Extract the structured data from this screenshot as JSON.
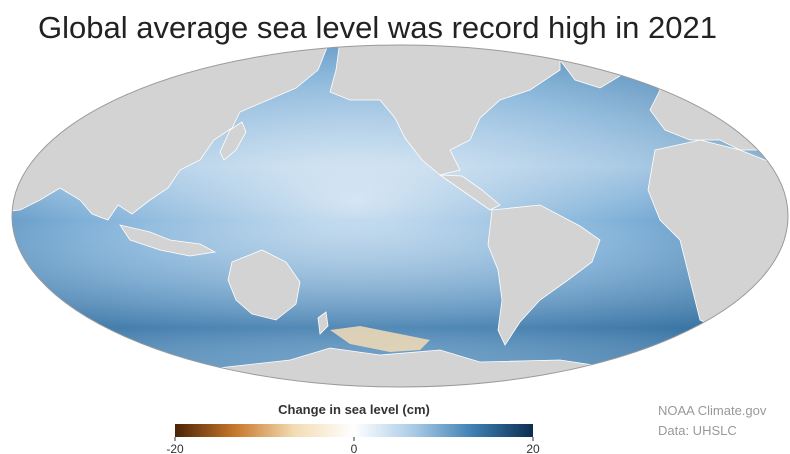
{
  "title": "Global average sea level was record high in 2021",
  "colorbar": {
    "label": "Change in sea level (cm)",
    "range": [
      -20,
      20
    ],
    "ticks": [
      -20,
      0,
      20
    ],
    "colors": [
      "#4a2306",
      "#c7772a",
      "#f3dcb4",
      "#ffffff",
      "#a9cbe6",
      "#3d7fb3",
      "#0c2e4f"
    ]
  },
  "credits": [
    "NOAA Climate.gov",
    "Data: UHSLC"
  ]
}
